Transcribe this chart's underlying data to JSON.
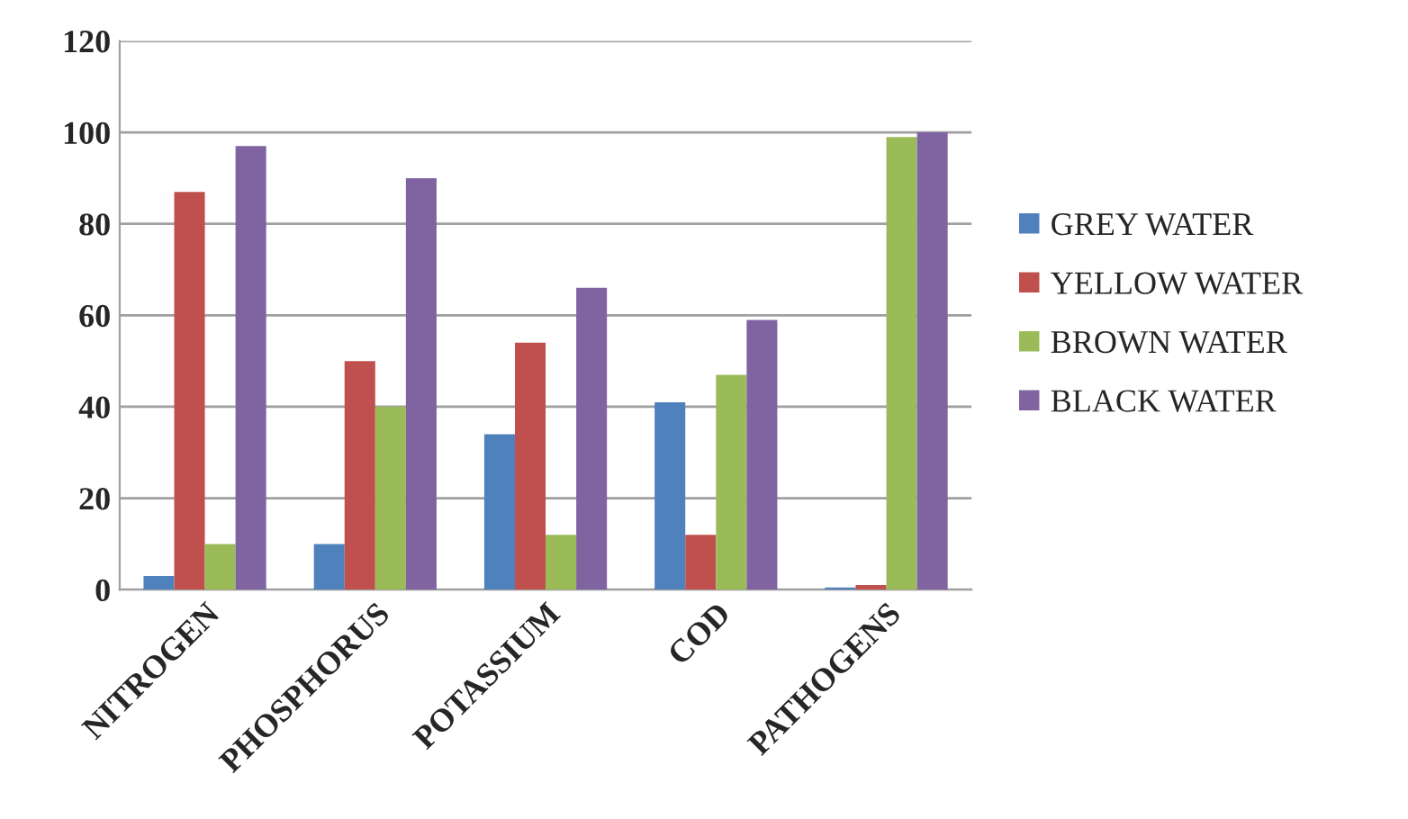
{
  "chart_data": {
    "type": "bar",
    "categories": [
      "NITROGEN",
      "PHOSPHORUS",
      "POTASSIUM",
      "COD",
      "PATHOGENS"
    ],
    "series": [
      {
        "name": "GREY WATER",
        "color": "#4f81bd",
        "values": [
          3,
          10,
          34,
          41,
          0.5
        ]
      },
      {
        "name": "YELLOW WATER",
        "color": "#c0504d",
        "values": [
          87,
          50,
          54,
          12,
          1
        ]
      },
      {
        "name": "BROWN WATER",
        "color": "#9bbb59",
        "values": [
          10,
          40,
          12,
          47,
          99
        ]
      },
      {
        "name": "BLACK WATER",
        "color": "#8064a2",
        "values": [
          97,
          90,
          66,
          59,
          100
        ]
      }
    ],
    "ylim": [
      0,
      120
    ],
    "yticks": [
      0,
      20,
      40,
      60,
      80,
      100,
      120
    ],
    "grid": "y",
    "legend": "right"
  }
}
